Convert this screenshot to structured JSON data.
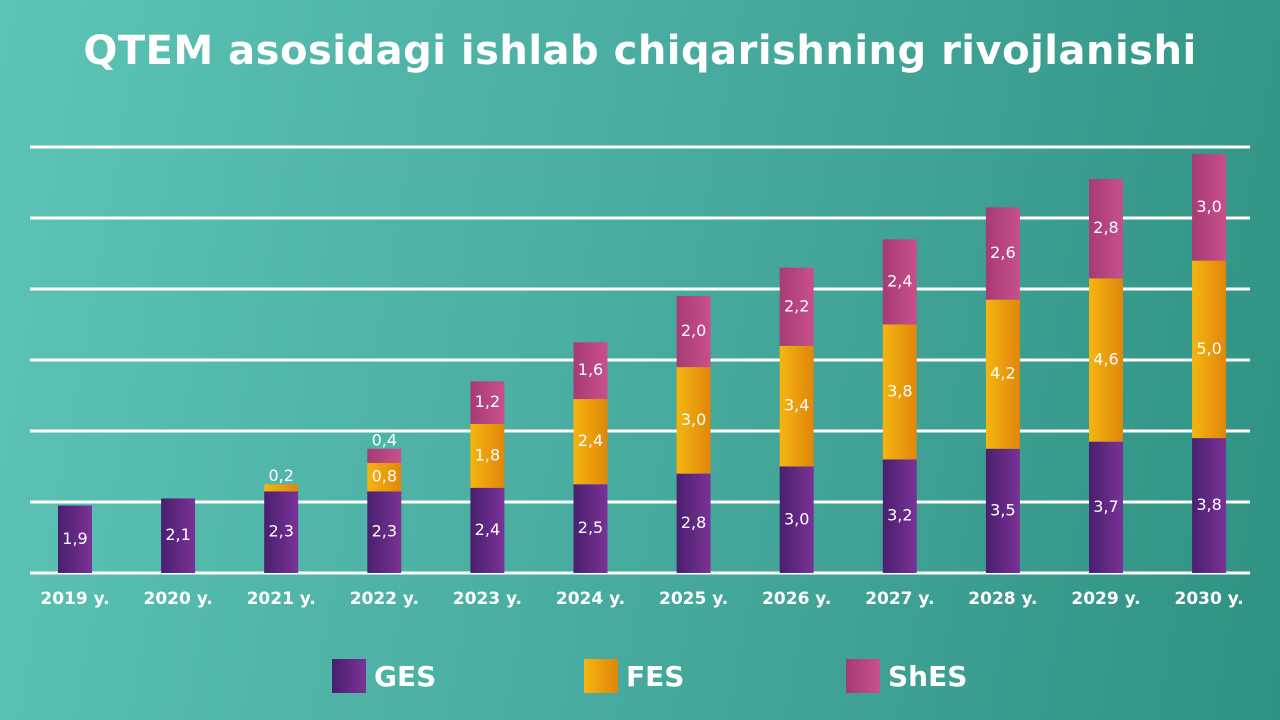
{
  "chart_data": {
    "type": "bar",
    "stacked": true,
    "title": "QTEM asosidagi ishlab chiqarishning rivojlanishi",
    "categories": [
      "2019 y.",
      "2020 y.",
      "2021 y.",
      "2022 y.",
      "2023 y.",
      "2024 y.",
      "2025 y.",
      "2026 y.",
      "2027 y.",
      "2028 y.",
      "2029 y.",
      "2030 y."
    ],
    "series": [
      {
        "name": "GES",
        "color": "#6a2a86",
        "values": [
          1.9,
          2.1,
          2.3,
          2.3,
          2.4,
          2.5,
          2.8,
          3.0,
          3.2,
          3.5,
          3.7,
          3.8
        ],
        "labels": [
          "1,9",
          "2,1",
          "2,3",
          "2,3",
          "2,4",
          "2,5",
          "2,8",
          "3,0",
          "3,2",
          "3,5",
          "3,7",
          "3,8"
        ]
      },
      {
        "name": "FES",
        "color": "#f4ae0c",
        "values": [
          0,
          0,
          0.2,
          0.8,
          1.8,
          2.4,
          3.0,
          3.4,
          3.8,
          4.2,
          4.6,
          5.0
        ],
        "labels": [
          "",
          "",
          "0,2",
          "0,8",
          "1,8",
          "2,4",
          "3,0",
          "3,4",
          "3,8",
          "4,2",
          "4,6",
          "5,0"
        ]
      },
      {
        "name": "ShES",
        "color": "#b8437d",
        "values": [
          0,
          0,
          0,
          0.4,
          1.2,
          1.6,
          2.0,
          2.2,
          2.4,
          2.6,
          2.8,
          3.0
        ],
        "labels": [
          "",
          "",
          "",
          "0,4",
          "1,2",
          "1,6",
          "2,0",
          "2,2",
          "2,4",
          "2,6",
          "2,8",
          "3,0"
        ]
      }
    ],
    "ylim": [
      0,
      12
    ],
    "grid": true,
    "legend": "bottom"
  }
}
